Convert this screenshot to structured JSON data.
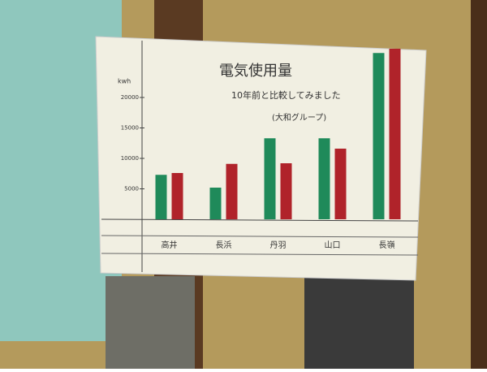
{
  "chart_data": {
    "type": "bar",
    "title": "電気使用量",
    "subtitle": "10年前と比較してみました",
    "annotation": "(大和グループ)",
    "y_label": "kwh",
    "categories": [
      "高井",
      "長浜",
      "丹羽",
      "山口",
      "長嶺"
    ],
    "series": [
      {
        "color": "#1f8a5a",
        "values": [
          7300,
          5200,
          13300,
          13300,
          27300
        ]
      },
      {
        "color": "#b0232a",
        "values": [
          7600,
          9100,
          9200,
          11600,
          28000
        ]
      }
    ],
    "ylim": [
      0,
      30000
    ],
    "yticks": [
      5000,
      10000,
      15000,
      20000
    ],
    "grid": false
  }
}
